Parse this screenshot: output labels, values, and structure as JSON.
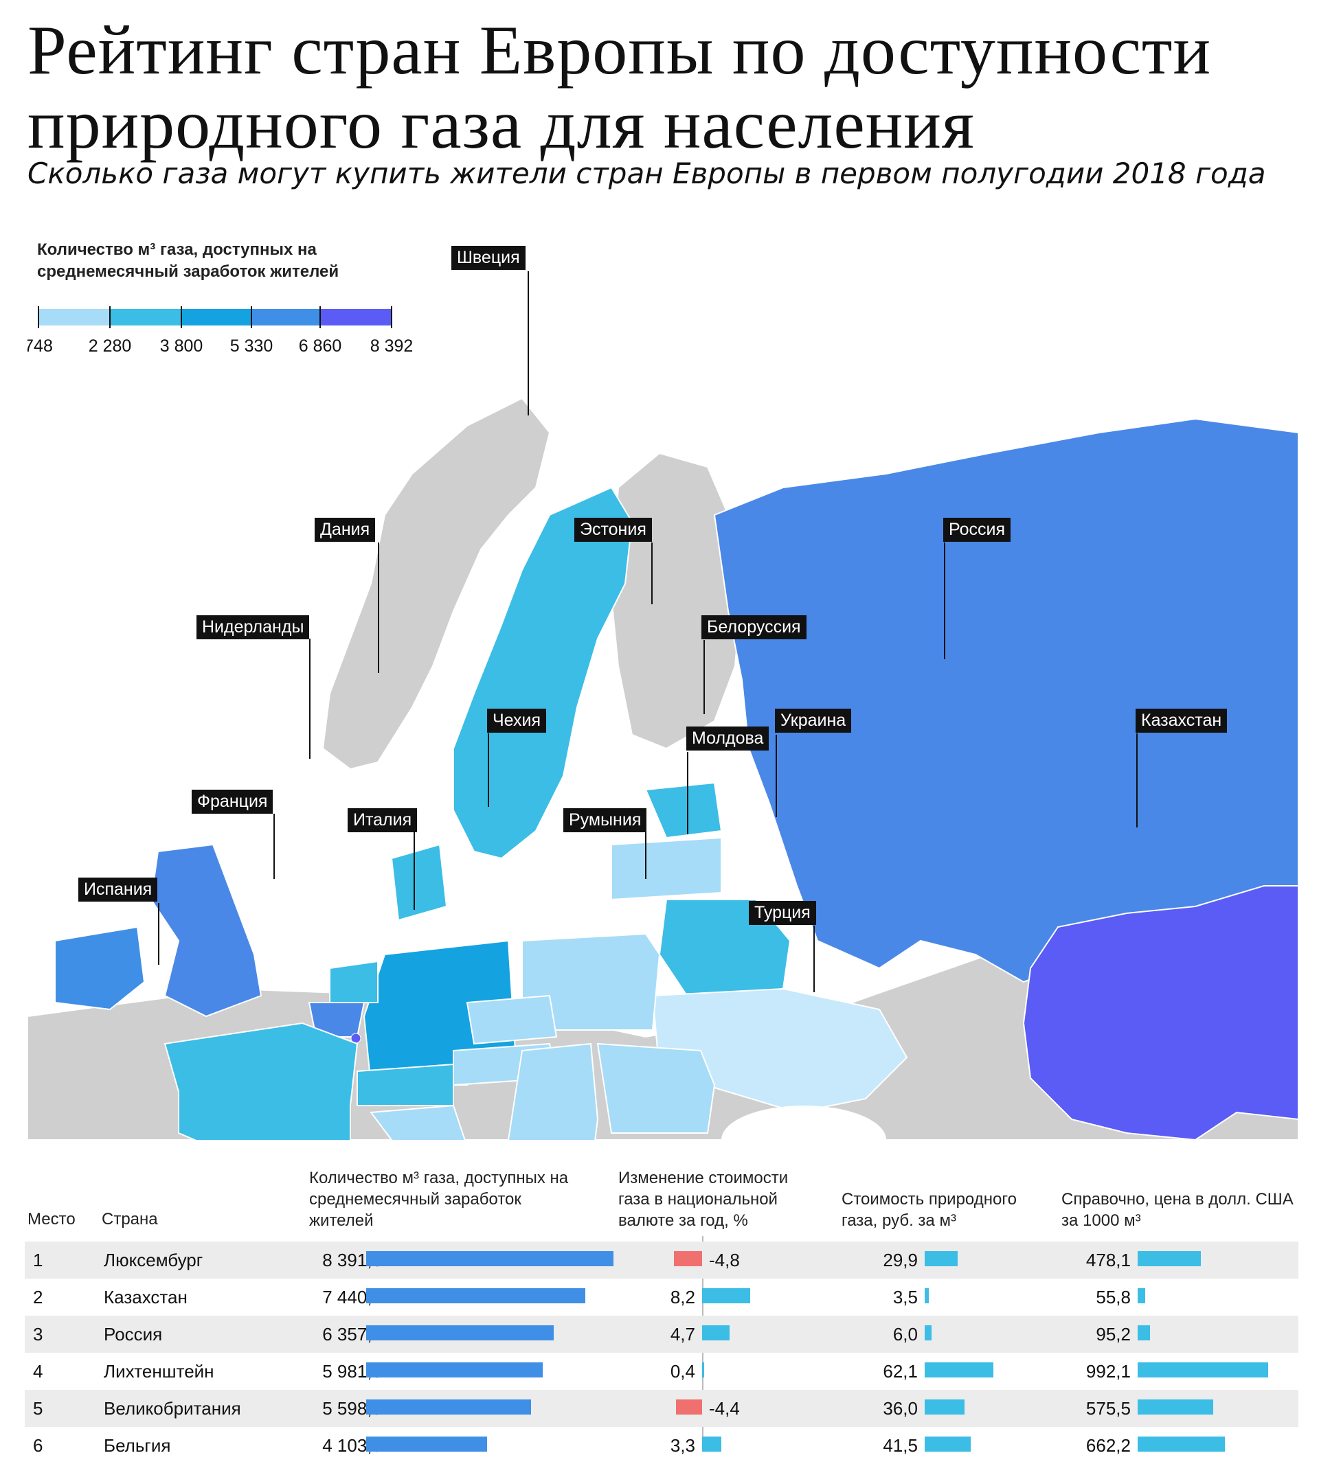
{
  "title": "Рейтинг стран Европы по доступности природного газа для населения",
  "subtitle": "Сколько газа могут купить жители стран Европы в первом полугодии 2018 года",
  "legend": {
    "title": "Количество м³ газа, доступных на среднемесячный заработок жителей",
    "ticks": [
      "748",
      "2 280",
      "3 800",
      "5 330",
      "6 860",
      "8 392"
    ],
    "colors": [
      "#a6dcf7",
      "#3bbde6",
      "#14a3e0",
      "#3f8fe6",
      "#4a88e8",
      "#5a5cf5"
    ]
  },
  "map_labels": [
    "Швеция",
    "Дания",
    "Эстония",
    "Россия",
    "Нидерланды",
    "Белоруссия",
    "Чехия",
    "Украина",
    "Молдова",
    "Казахстан",
    "Франция",
    "Италия",
    "Румыния",
    "Испания",
    "Турция"
  ],
  "table": {
    "headers": {
      "place": "Место",
      "country": "Страна",
      "gas": "Количество м³ газа, доступных на среднемесячный заработок жителей",
      "change": "Изменение стоимости газа в национальной валюте за год, %",
      "cost_rub": "Стоимость природного газа, руб. за м³",
      "price_usd": "Справочно, цена в долл. США за 1000 м³"
    },
    "rows": [
      {
        "place": "1",
        "country": "Люксембург",
        "gas": "8 391,6",
        "change": "-4,8",
        "cost": "29,9",
        "usd": "478,1"
      },
      {
        "place": "2",
        "country": "Казахстан",
        "gas": "7 440,2",
        "change": "8,2",
        "cost": "3,5",
        "usd": "55,8"
      },
      {
        "place": "3",
        "country": "Россия",
        "gas": "6 357,1",
        "change": "4,7",
        "cost": "6,0",
        "usd": "95,2"
      },
      {
        "place": "4",
        "country": "Лихтенштейн",
        "gas": "5 981,5",
        "change": "0,4",
        "cost": "62,1",
        "usd": "992,1"
      },
      {
        "place": "5",
        "country": "Великобритания",
        "gas": "5 598,9",
        "change": "-4,4",
        "cost": "36,0",
        "usd": "575,5"
      },
      {
        "place": "6",
        "country": "Бельгия",
        "gas": "4 103,9",
        "change": "3,3",
        "cost": "41,5",
        "usd": "662,2"
      }
    ]
  },
  "chart_data": {
    "type": "table",
    "columns": [
      "Место",
      "Страна",
      "Количество м³ газа",
      "Изменение стоимости, %",
      "Стоимость, руб. за м³",
      "Цена, долл. США за 1000 м³"
    ],
    "rows": [
      [
        1,
        "Люксембург",
        8391.6,
        -4.8,
        29.9,
        478.1
      ],
      [
        2,
        "Казахстан",
        7440.2,
        8.2,
        3.5,
        55.8
      ],
      [
        3,
        "Россия",
        6357.1,
        4.7,
        6.0,
        95.2
      ],
      [
        4,
        "Лихтенштейн",
        5981.5,
        0.4,
        62.1,
        992.1
      ],
      [
        5,
        "Великобритания",
        5598.9,
        -4.4,
        36.0,
        575.5
      ],
      [
        6,
        "Бельгия",
        4103.9,
        3.3,
        41.5,
        662.2
      ]
    ],
    "bar_colors": {
      "gas": "#3f8fe6",
      "positive": "#3bbde6",
      "negative": "#f07070"
    }
  }
}
